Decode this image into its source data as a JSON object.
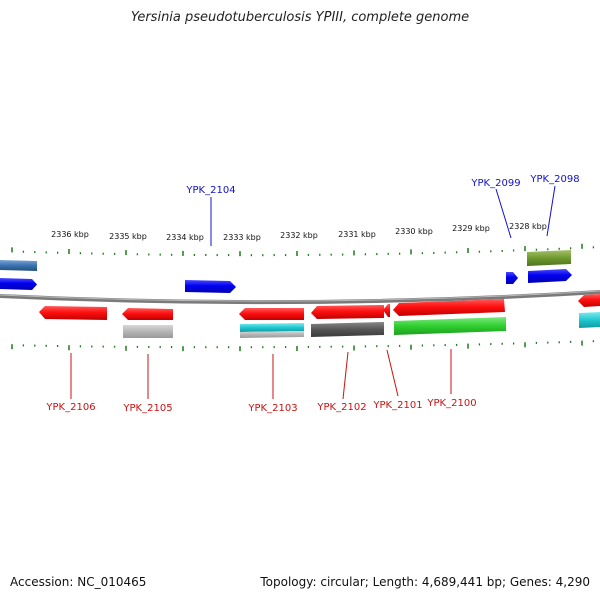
{
  "title": "Yersinia pseudotuberculosis YPIII, complete genome",
  "footer": {
    "accession": "Accession: NC_010465",
    "summary": "Topology: circular; Length: 4,689,441 bp; Genes: 4,290"
  },
  "scale_labels": [
    "2336 kbp",
    "2335 kbp",
    "2334 kbp",
    "2333 kbp",
    "2332 kbp",
    "2331 kbp",
    "2330 kbp",
    "2329 kbp",
    "2328 kbp"
  ],
  "top_labels": [
    "YPK_2104",
    "YPK_2099",
    "YPK_2098"
  ],
  "bottom_labels": [
    "YPK_2106",
    "YPK_2105",
    "YPK_2103",
    "YPK_2102",
    "YPK_2101",
    "YPK_2100"
  ],
  "colors": {
    "forward": "#0000ff",
    "reverse": "#ff0000",
    "backbone": "#7a7a7a",
    "tick": "#1a7a1a",
    "top_label": "#1111cc",
    "bottom_label": "#cc1111"
  }
}
